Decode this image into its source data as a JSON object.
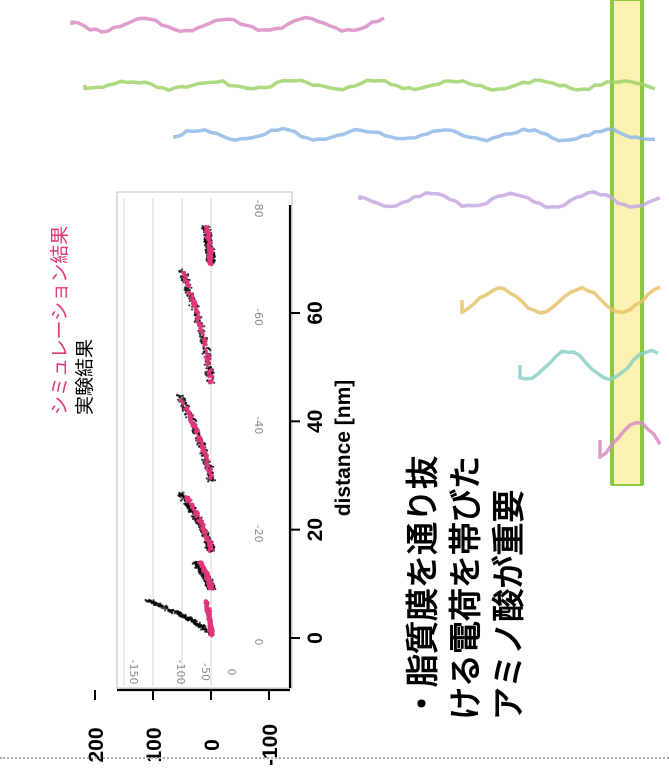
{
  "chart_data": {
    "type": "scatter",
    "orientation": "rotated-90-ccw",
    "xlabel": "distance [nm]",
    "x_ticks": [
      "0",
      "20",
      "40",
      "60"
    ],
    "xlim": [
      -3,
      76
    ],
    "ylim": [
      -110,
      235
    ],
    "y_ticks": [
      "-100",
      "0",
      "100",
      "200"
    ],
    "inset_ticks": [
      "0",
      "-20",
      "-40",
      "-60",
      "-80"
    ],
    "inset_y_ticks": [
      "0",
      "-50",
      "-100",
      "-150"
    ],
    "grid": true,
    "legend_position": "top-right",
    "series": [
      {
        "name": "実験結果",
        "color": "#000000",
        "marker": "dense black dots",
        "segments": [
          {
            "x": [
              0.5,
              7
            ],
            "y": [
              0,
              110
            ]
          },
          {
            "x": [
              9,
              14
            ],
            "y": [
              0,
              25
            ]
          },
          {
            "x": [
              16,
              27
            ],
            "y": [
              0,
              55
            ]
          },
          {
            "x": [
              29,
              45
            ],
            "y": [
              0,
              55
            ]
          },
          {
            "x": [
              47,
              68
            ],
            "y": [
              0,
              50
            ]
          },
          {
            "x": [
              69,
              76
            ],
            "y": [
              0,
              10
            ]
          }
        ]
      },
      {
        "name": "シミュレーション結果",
        "color": "#e0357a",
        "marker": "magenta dots",
        "segments": [
          {
            "x": [
              0.5,
              7
            ],
            "y": [
              0,
              8
            ]
          },
          {
            "x": [
              9,
              14
            ],
            "y": [
              0,
              18
            ]
          },
          {
            "x": [
              16,
              26
            ],
            "y": [
              0,
              42
            ]
          },
          {
            "x": [
              29,
              44
            ],
            "y": [
              0,
              50
            ]
          },
          {
            "x": [
              47,
              68
            ],
            "y": [
              0,
              48
            ]
          },
          {
            "x": [
              69,
              76
            ],
            "y": [
              0,
              8
            ]
          }
        ]
      }
    ]
  },
  "legend": {
    "simulation_label": "シミュレーション結果",
    "experiment_label": "実験結果"
  },
  "caption": {
    "lines": [
      "・脂質膜を通り抜",
      "ける電荷を帯びた",
      "アミノ酸が重要"
    ]
  },
  "colors": {
    "simulation": "#e0357a",
    "experiment": "#000000",
    "membrane_fill": "#fbf1b0",
    "membrane_edge": "#8dc63f",
    "inset_ticks": "#8a8a8a"
  },
  "illustration": {
    "description_icon": "protein-chains-through-membrane-icon"
  }
}
